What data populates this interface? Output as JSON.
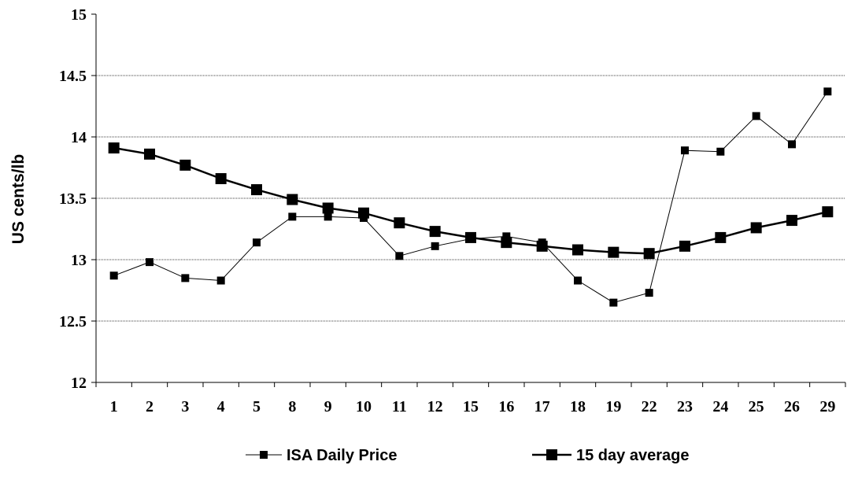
{
  "chart_data": {
    "type": "line",
    "title": "",
    "xlabel": "",
    "ylabel": "US cents/lb",
    "ylim": [
      12,
      15
    ],
    "yticks": [
      "12",
      "12.5",
      "13",
      "13.5",
      "14",
      "14.5",
      "15"
    ],
    "grid": true,
    "legend_position": "bottom",
    "categories": [
      "1",
      "2",
      "3",
      "4",
      "5",
      "8",
      "9",
      "10",
      "11",
      "12",
      "15",
      "16",
      "17",
      "18",
      "19",
      "22",
      "23",
      "24",
      "25",
      "26",
      "29"
    ],
    "series": [
      {
        "name": "ISA Daily Price",
        "color": "#000000",
        "values": [
          12.87,
          12.98,
          12.85,
          12.83,
          13.14,
          13.35,
          13.35,
          13.34,
          13.03,
          13.11,
          13.17,
          13.19,
          13.14,
          12.83,
          12.65,
          12.73,
          13.89,
          13.88,
          14.17,
          13.94,
          14.37
        ]
      },
      {
        "name": "15 day average",
        "color": "#000000",
        "values": [
          13.91,
          13.86,
          13.77,
          13.66,
          13.57,
          13.49,
          13.42,
          13.38,
          13.3,
          13.23,
          13.18,
          13.14,
          13.11,
          13.08,
          13.06,
          13.05,
          13.11,
          13.18,
          13.26,
          13.32,
          13.39
        ]
      }
    ]
  }
}
